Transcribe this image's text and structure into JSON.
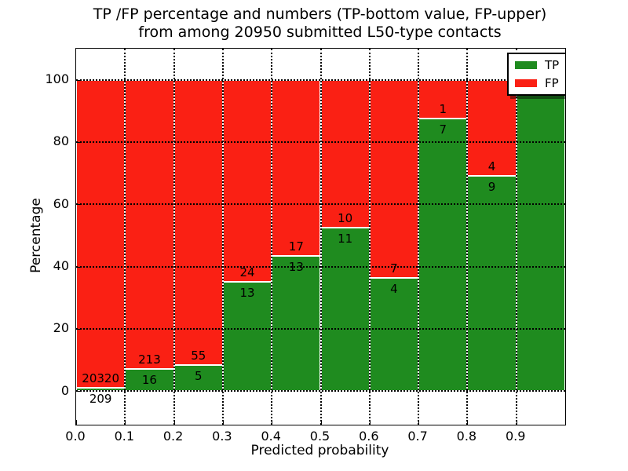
{
  "chart_data": {
    "type": "bar",
    "subtype": "stacked-100-percent",
    "title_line1": "TP /FP percentage and numbers (TP-bottom value, FP-upper)",
    "title_line2": "from among 20950 submitted L50-type contacts",
    "xlabel": "Predicted probability",
    "ylabel": "Percentage",
    "total_contacts": 20950,
    "xlim": [
      0,
      1
    ],
    "ylim": [
      -10.8,
      110
    ],
    "grid": true,
    "x_ticks": [
      "0.0",
      "0.1",
      "0.2",
      "0.3",
      "0.4",
      "0.5",
      "0.6",
      "0.7",
      "0.8",
      "0.9"
    ],
    "x_tick_values": [
      0.0,
      0.1,
      0.2,
      0.3,
      0.4,
      0.5,
      0.6,
      0.7,
      0.8,
      0.9
    ],
    "y_ticks": [
      "0",
      "20",
      "40",
      "60",
      "80",
      "100"
    ],
    "y_tick_values": [
      0,
      20,
      40,
      60,
      80,
      100
    ],
    "colors": {
      "tp": "#1f8b1f",
      "fp": "#fa2014",
      "grid": "#000000",
      "background": "#ffffff"
    },
    "legend": {
      "position": "upper-right",
      "items": [
        {
          "label": "TP",
          "color": "#1f8b1f"
        },
        {
          "label": "FP",
          "color": "#fa2014"
        }
      ]
    },
    "bins": [
      {
        "x_start": 0.0,
        "x_end": 0.1,
        "tp": 209,
        "fp": 20320,
        "tp_pct": 1.02,
        "tp_label": "209",
        "fp_label": "20320"
      },
      {
        "x_start": 0.1,
        "x_end": 0.2,
        "tp": 16,
        "fp": 213,
        "tp_pct": 6.99,
        "tp_label": "16",
        "fp_label": "213"
      },
      {
        "x_start": 0.2,
        "x_end": 0.3,
        "tp": 5,
        "fp": 55,
        "tp_pct": 8.33,
        "tp_label": "5",
        "fp_label": "55"
      },
      {
        "x_start": 0.3,
        "x_end": 0.4,
        "tp": 13,
        "fp": 24,
        "tp_pct": 35.14,
        "tp_label": "13",
        "fp_label": "24"
      },
      {
        "x_start": 0.4,
        "x_end": 0.5,
        "tp": 13,
        "fp": 17,
        "tp_pct": 43.33,
        "tp_label": "13",
        "fp_label": "17"
      },
      {
        "x_start": 0.5,
        "x_end": 0.6,
        "tp": 11,
        "fp": 10,
        "tp_pct": 52.38,
        "tp_label": "11",
        "fp_label": "10"
      },
      {
        "x_start": 0.6,
        "x_end": 0.7,
        "tp": 4,
        "fp": 7,
        "tp_pct": 36.36,
        "tp_label": "4",
        "fp_label": "7"
      },
      {
        "x_start": 0.7,
        "x_end": 0.8,
        "tp": 7,
        "fp": 1,
        "tp_pct": 87.5,
        "tp_label": "7",
        "fp_label": "1"
      },
      {
        "x_start": 0.8,
        "x_end": 0.9,
        "tp": 9,
        "fp": 4,
        "tp_pct": 69.23,
        "tp_label": "9",
        "fp_label": "4"
      },
      {
        "x_start": 0.9,
        "x_end": 1.0,
        "tp": 12,
        "fp": 0,
        "tp_pct": 100.0,
        "tp_label": "12",
        "fp_label": ""
      }
    ]
  }
}
